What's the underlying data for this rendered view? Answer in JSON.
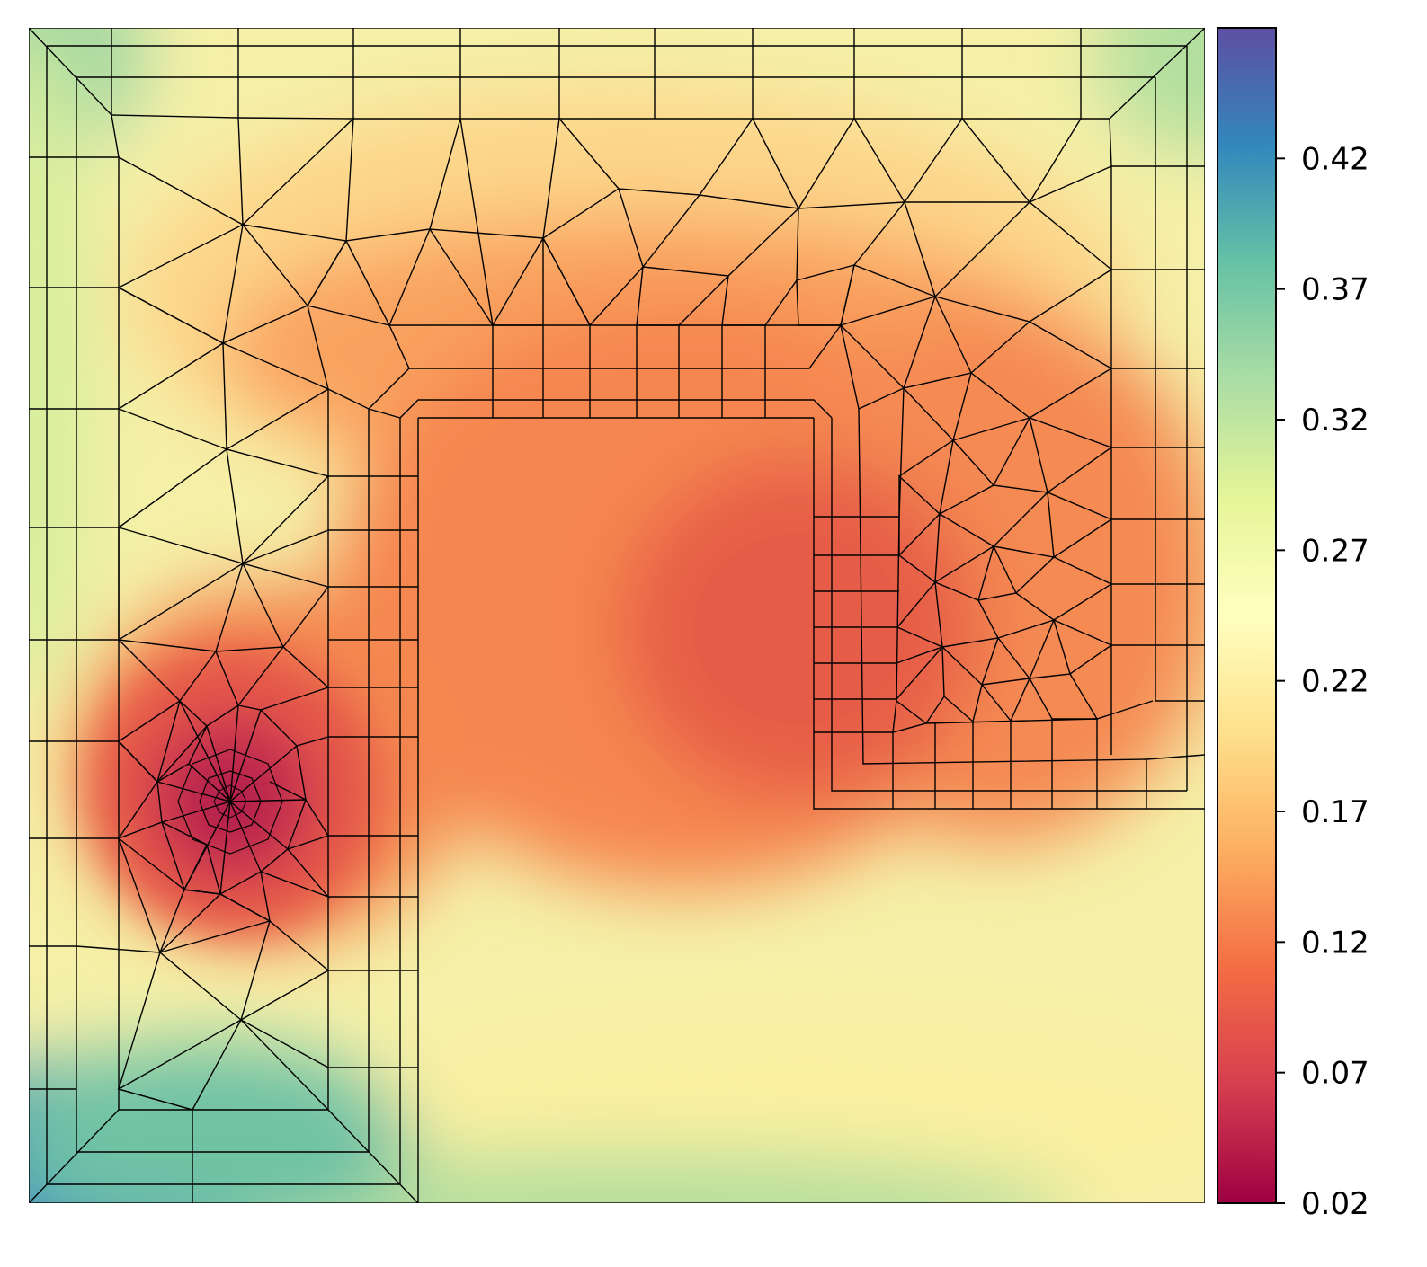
{
  "chart_data": {
    "type": "heatmap",
    "title": "",
    "xlabel": "",
    "ylabel": "",
    "grid": false,
    "legend": "none",
    "colormap": "Spectral",
    "colorbar": {
      "location": "right",
      "range": [
        0.02,
        0.47
      ],
      "ticks": [
        0.02,
        0.07,
        0.12,
        0.17,
        0.22,
        0.27,
        0.32,
        0.37,
        0.42
      ],
      "tick_labels": [
        "0.02",
        "0.07",
        "0.12",
        "0.17",
        "0.22",
        "0.27",
        "0.32",
        "0.37",
        "0.42"
      ]
    },
    "field_description": "Filled contour field over a square domain with an overlaid finite-element mesh (quad boundary layers around an inverted-U shaped region, triangular elements elsewhere).",
    "minima": [
      {
        "name": "left mesh refinement point",
        "value": 0.03
      },
      {
        "name": "central interior region",
        "value": 0.11
      }
    ],
    "maxima": [
      {
        "name": "bottom-left corner",
        "value": 0.46
      }
    ]
  }
}
